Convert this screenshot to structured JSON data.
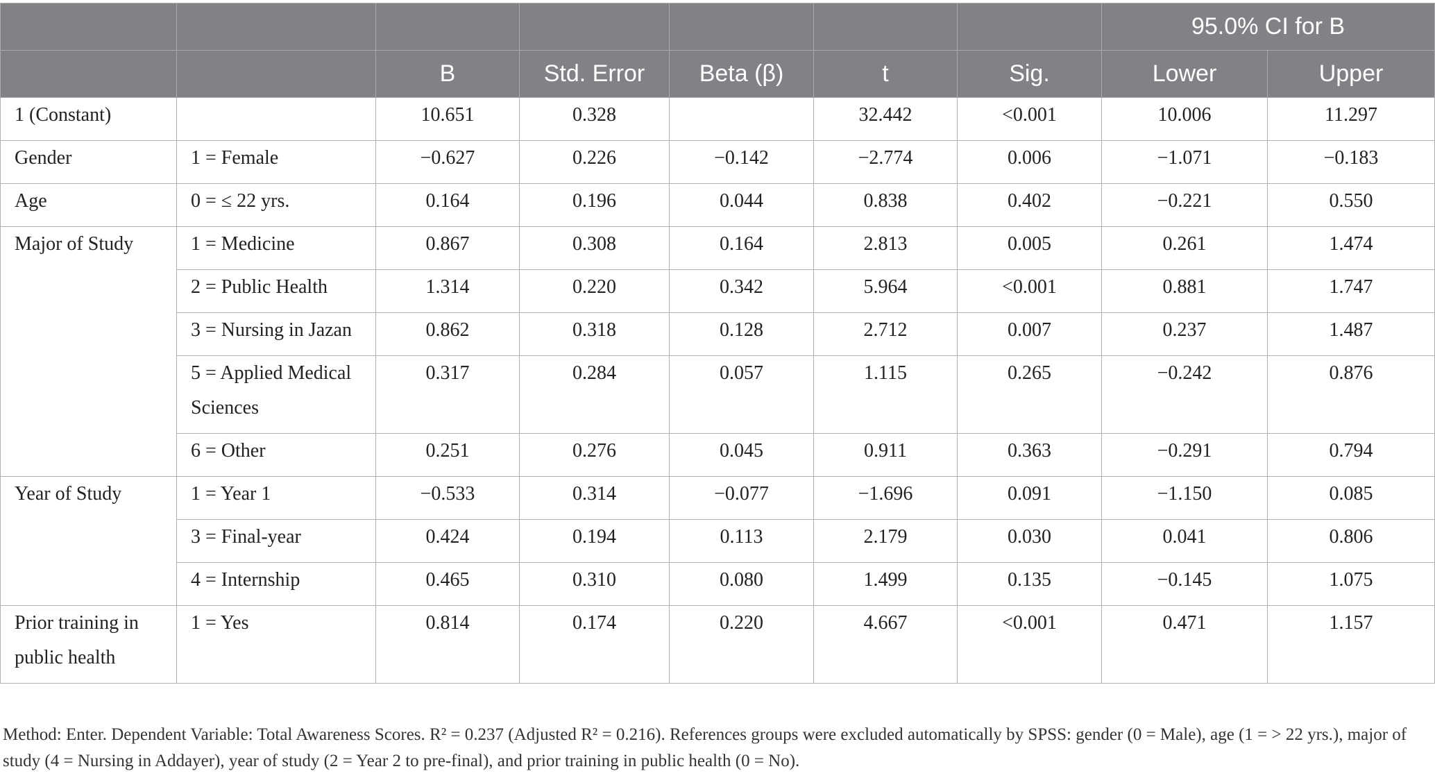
{
  "header": {
    "ci_group": "95.0% CI for B",
    "cols": [
      "B",
      "Std. Error",
      "Beta (β)",
      "t",
      "Sig.",
      "Lower",
      "Upper"
    ]
  },
  "rows": [
    {
      "var": "1 (Constant)",
      "level": "",
      "vals": [
        "10.651",
        "0.328",
        "",
        "32.442",
        "<0.001",
        "10.006",
        "11.297"
      ]
    },
    {
      "var": "Gender",
      "level": "1 = Female",
      "vals": [
        "−0.627",
        "0.226",
        "−0.142",
        "−2.774",
        "0.006",
        "−1.071",
        "−0.183"
      ]
    },
    {
      "var": "Age",
      "level": "0 = ≤ 22 yrs.",
      "vals": [
        "0.164",
        "0.196",
        "0.044",
        "0.838",
        "0.402",
        "−0.221",
        "0.550"
      ]
    },
    {
      "var": "Major of Study",
      "level": "1 = Medicine",
      "vals": [
        "0.867",
        "0.308",
        "0.164",
        "2.813",
        "0.005",
        "0.261",
        "1.474"
      ]
    },
    {
      "var": "",
      "level": "2 = Public Health",
      "vals": [
        "1.314",
        "0.220",
        "0.342",
        "5.964",
        "<0.001",
        "0.881",
        "1.747"
      ]
    },
    {
      "var": "",
      "level": "3 = Nursing in Jazan",
      "vals": [
        "0.862",
        "0.318",
        "0.128",
        "2.712",
        "0.007",
        "0.237",
        "1.487"
      ]
    },
    {
      "var": "",
      "level": "5 = Applied Medical Sciences",
      "vals": [
        "0.317",
        "0.284",
        "0.057",
        "1.115",
        "0.265",
        "−0.242",
        "0.876"
      ]
    },
    {
      "var": "",
      "level": "6 = Other",
      "vals": [
        "0.251",
        "0.276",
        "0.045",
        "0.911",
        "0.363",
        "−0.291",
        "0.794"
      ]
    },
    {
      "var": "Year of Study",
      "level": "1 = Year 1",
      "vals": [
        "−0.533",
        "0.314",
        "−0.077",
        "−1.696",
        "0.091",
        "−1.150",
        "0.085"
      ]
    },
    {
      "var": "",
      "level": "3 = Final-year",
      "vals": [
        "0.424",
        "0.194",
        "0.113",
        "2.179",
        "0.030",
        "0.041",
        "0.806"
      ]
    },
    {
      "var": "",
      "level": "4 = Internship",
      "vals": [
        "0.465",
        "0.310",
        "0.080",
        "1.499",
        "0.135",
        "−0.145",
        "1.075"
      ]
    },
    {
      "var": "Prior training in public health",
      "level": "1 = Yes",
      "vals": [
        "0.814",
        "0.174",
        "0.220",
        "4.667",
        "<0.001",
        "0.471",
        "1.157"
      ]
    }
  ],
  "footnote": "Method: Enter. Dependent Variable: Total Awareness Scores. R² = 0.237 (Adjusted R² = 0.216). References groups were excluded automatically by SPSS: gender (0 = Male), age (1 = > 22 yrs.), major of study (4 = Nursing in Addayer), year of study (2 = Year 2 to pre-final), and prior training in public health (0 = No)."
}
